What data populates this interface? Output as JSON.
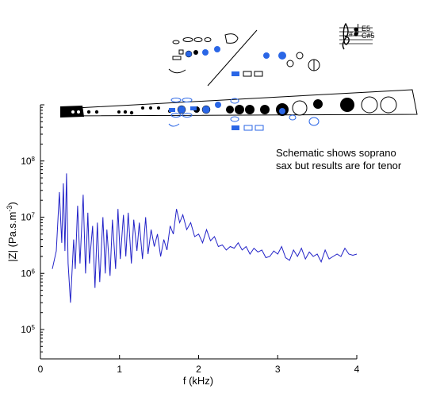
{
  "chart_data": {
    "type": "line",
    "title": "",
    "xlabel": "f (kHz)",
    "ylabel_main": "|Z| (Pa.s.m",
    "ylabel_sup": "-3",
    "ylabel_end": ")",
    "xlim": [
      0,
      4
    ],
    "ylim": [
      30000,
      1000000000
    ],
    "yscale": "log",
    "x_ticks": [
      0,
      1,
      2,
      3,
      4
    ],
    "x_tick_labels": [
      "0",
      "1",
      "2",
      "3",
      "4"
    ],
    "y_ticks": [
      100000,
      1000000,
      10000000,
      100000000
    ],
    "y_tick_labels": [
      {
        "base": "10",
        "exp": "5"
      },
      {
        "base": "10",
        "exp": "6"
      },
      {
        "base": "10",
        "exp": "7"
      },
      {
        "base": "10",
        "exp": "8"
      }
    ],
    "grid": false,
    "legend": "none",
    "line_color": "#2222c8",
    "series": [
      {
        "x": [
          0.15,
          0.2,
          0.24,
          0.27,
          0.29,
          0.31,
          0.33,
          0.35,
          0.38,
          0.42,
          0.44,
          0.47,
          0.5,
          0.54,
          0.57,
          0.6,
          0.62,
          0.66,
          0.69,
          0.72,
          0.75,
          0.79,
          0.82,
          0.84,
          0.88,
          0.91,
          0.95,
          0.98,
          1.01,
          1.05,
          1.08,
          1.11,
          1.15,
          1.18,
          1.22,
          1.25,
          1.29,
          1.33,
          1.36,
          1.4,
          1.44,
          1.48,
          1.52,
          1.56,
          1.6,
          1.64,
          1.68,
          1.72,
          1.76,
          1.8,
          1.85,
          1.9,
          1.95,
          2.0,
          2.05,
          2.1,
          2.15,
          2.2,
          2.25,
          2.3,
          2.35,
          2.4,
          2.45,
          2.5,
          2.55,
          2.6,
          2.65,
          2.7,
          2.75,
          2.8,
          2.85,
          2.9,
          2.95,
          3.0,
          3.05,
          3.1,
          3.15,
          3.2,
          3.25,
          3.3,
          3.35,
          3.4,
          3.45,
          3.5,
          3.55,
          3.6,
          3.65,
          3.7,
          3.75,
          3.8,
          3.85,
          3.9,
          3.95,
          4.0
        ],
        "y": [
          1200000,
          2500000,
          28000000,
          3500000,
          40000000,
          2500000,
          60000000,
          1500000,
          300000,
          4000000,
          1200000,
          16000000,
          1500000,
          25000000,
          1000000,
          12000000,
          1500000,
          7000000,
          550000,
          8000000,
          700000,
          10000000,
          1000000,
          6000000,
          900000,
          9000000,
          1200000,
          14000000,
          1800000,
          11000000,
          2000000,
          12000000,
          1500000,
          9000000,
          2500000,
          8000000,
          1800000,
          10000000,
          2200000,
          6000000,
          3000000,
          5000000,
          2000000,
          4000000,
          2600000,
          7000000,
          5000000,
          14000000,
          8000000,
          11000000,
          6000000,
          8000000,
          4500000,
          5000000,
          3500000,
          6000000,
          3800000,
          4500000,
          3000000,
          3200000,
          2600000,
          3000000,
          2800000,
          3500000,
          2600000,
          3000000,
          2200000,
          2800000,
          2400000,
          2600000,
          1900000,
          2000000,
          2500000,
          2200000,
          3000000,
          1900000,
          1700000,
          2600000,
          2000000,
          2800000,
          1800000,
          2400000,
          2000000,
          2200000,
          1600000,
          2600000,
          1800000,
          2000000,
          2200000,
          2000000,
          2800000,
          2200000,
          2100000,
          2200000
        ]
      }
    ],
    "annotation_lines": [
      "Schematic shows soprano",
      "sax but results are for tenor"
    ],
    "notes_label_top": "E5",
    "notes_label_bottom": "C#5"
  }
}
